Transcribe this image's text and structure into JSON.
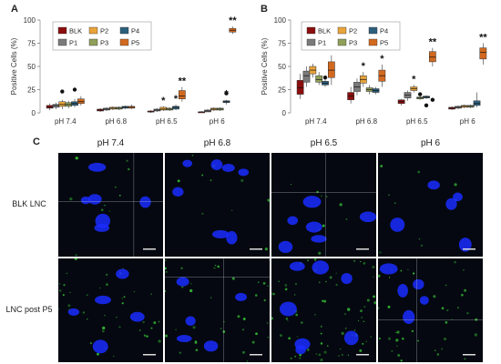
{
  "panels": {
    "a": "A",
    "b": "B",
    "c": "C"
  },
  "chart_data": [
    {
      "type": "box",
      "panel": "A",
      "ylabel": "Positive Cells (%)",
      "ylim": [
        0,
        100
      ],
      "yticks": [
        0,
        25,
        50,
        75,
        100
      ],
      "categories": [
        "pH 7.4",
        "pH 6.8",
        "pH 6.5",
        "pH 6"
      ],
      "series": [
        {
          "name": "BLK",
          "color": "#8b0d0d"
        },
        {
          "name": "P1",
          "color": "#7a7a7a"
        },
        {
          "name": "P2",
          "color": "#e8a33a"
        },
        {
          "name": "P3",
          "color": "#8fa05a"
        },
        {
          "name": "P4",
          "color": "#2c5f7c"
        },
        {
          "name": "P5",
          "color": "#d2691e"
        }
      ],
      "boxes": [
        [
          [
            3,
            5,
            6,
            8,
            10
          ],
          [
            4,
            6,
            8,
            9,
            11
          ],
          [
            4,
            7,
            9,
            12,
            14
          ],
          [
            5,
            7,
            9,
            11,
            13
          ],
          [
            6,
            8,
            10,
            12,
            15
          ],
          [
            8,
            10,
            12,
            15,
            18
          ]
        ],
        [
          [
            1,
            2,
            3,
            4,
            5
          ],
          [
            2,
            3,
            4,
            5,
            6
          ],
          [
            3,
            4,
            5,
            6,
            7
          ],
          [
            3,
            4,
            5,
            6,
            7
          ],
          [
            4,
            5,
            6,
            7,
            8
          ],
          [
            4,
            5,
            6,
            7,
            9
          ]
        ],
        [
          [
            0,
            1,
            1,
            2,
            3
          ],
          [
            1,
            2,
            3,
            4,
            5
          ],
          [
            2,
            3,
            4,
            6,
            7
          ],
          [
            2,
            3,
            4,
            5,
            6
          ],
          [
            3,
            4,
            6,
            7,
            9
          ],
          [
            12,
            15,
            18,
            24,
            28
          ]
        ],
        [
          [
            0,
            0,
            1,
            1,
            2
          ],
          [
            1,
            1,
            2,
            3,
            4
          ],
          [
            2,
            3,
            4,
            5,
            6
          ],
          [
            2,
            3,
            4,
            5,
            6
          ],
          [
            9,
            11,
            12,
            13,
            14
          ],
          [
            85,
            87,
            89,
            91,
            93
          ]
        ]
      ],
      "outliers": [
        {
          "group": 0,
          "series": 2,
          "y": 23
        },
        {
          "group": 0,
          "series": 4,
          "y": 25
        },
        {
          "group": 3,
          "series": 4,
          "y": 21
        }
      ],
      "annotations": [
        {
          "group": 2,
          "series": 2,
          "text": "*"
        },
        {
          "group": 2,
          "series": 4,
          "text": "*"
        },
        {
          "group": 2,
          "series": 5,
          "text": "**"
        },
        {
          "group": 3,
          "series": 4,
          "text": "*"
        },
        {
          "group": 3,
          "series": 5,
          "text": "**"
        }
      ],
      "legend_position": "top-left"
    },
    {
      "type": "box",
      "panel": "B",
      "ylabel": "Positive Cells (%)",
      "ylim": [
        0,
        100
      ],
      "yticks": [
        0,
        25,
        50,
        75,
        100
      ],
      "categories": [
        "pH 7.4",
        "pH 6.8",
        "pH 6.5",
        "pH 6"
      ],
      "series": [
        {
          "name": "BLK",
          "color": "#8b0d0d"
        },
        {
          "name": "P1",
          "color": "#7a7a7a"
        },
        {
          "name": "P2",
          "color": "#e8a33a"
        },
        {
          "name": "P3",
          "color": "#8fa05a"
        },
        {
          "name": "P4",
          "color": "#2c5f7c"
        },
        {
          "name": "P5",
          "color": "#d2691e"
        }
      ],
      "boxes": [
        [
          [
            15,
            20,
            27,
            35,
            42
          ],
          [
            28,
            33,
            40,
            45,
            50
          ],
          [
            38,
            42,
            46,
            50,
            53
          ],
          [
            30,
            33,
            36,
            40,
            44
          ],
          [
            28,
            30,
            32,
            34,
            36
          ],
          [
            30,
            38,
            46,
            55,
            62
          ]
        ],
        [
          [
            10,
            14,
            18,
            22,
            28
          ],
          [
            19,
            23,
            28,
            33,
            37
          ],
          [
            28,
            32,
            36,
            40,
            44
          ],
          [
            20,
            23,
            25,
            27,
            30
          ],
          [
            20,
            22,
            24,
            26,
            28
          ],
          [
            28,
            34,
            40,
            46,
            52
          ]
        ],
        [
          [
            8,
            10,
            12,
            14,
            15
          ],
          [
            13,
            16,
            19,
            22,
            24
          ],
          [
            22,
            24,
            26,
            28,
            30
          ],
          [
            14,
            15,
            16,
            17,
            18
          ],
          [
            15,
            16,
            17,
            18,
            19
          ],
          [
            50,
            55,
            60,
            66,
            70
          ]
        ],
        [
          [
            3,
            4,
            5,
            6,
            7
          ],
          [
            4,
            5,
            6,
            7,
            8
          ],
          [
            5,
            6,
            7,
            8,
            9
          ],
          [
            5,
            6,
            7,
            8,
            9
          ],
          [
            6,
            8,
            10,
            13,
            22
          ],
          [
            52,
            58,
            65,
            70,
            75
          ]
        ]
      ],
      "outliers": [
        {
          "group": 0,
          "series": 4,
          "y": 38
        },
        {
          "group": 2,
          "series": 3,
          "y": 20
        },
        {
          "group": 2,
          "series": 4,
          "y": 8
        },
        {
          "group": 2,
          "series": 5,
          "y": 14
        }
      ],
      "annotations": [
        {
          "group": 1,
          "series": 2,
          "text": "*"
        },
        {
          "group": 1,
          "series": 5,
          "text": "*"
        },
        {
          "group": 2,
          "series": 2,
          "text": "*"
        },
        {
          "group": 2,
          "series": 5,
          "text": "**"
        },
        {
          "group": 3,
          "series": 5,
          "text": "**"
        }
      ],
      "legend_position": "top-center"
    }
  ],
  "micrographs": {
    "columns": [
      "pH 7.4",
      "pH 6.8",
      "pH 6.5",
      "pH 6"
    ],
    "rows": [
      "BLK LNC",
      "LNC post P5"
    ],
    "colors": {
      "background": "#050810",
      "nuclei": "#1a2cff",
      "signal": "#3ad03a",
      "crosshair": "#c8d0d8"
    }
  }
}
